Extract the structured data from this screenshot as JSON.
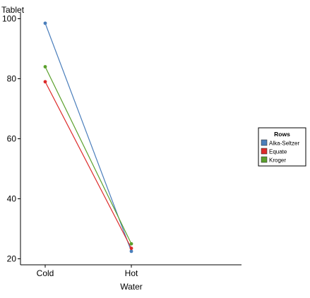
{
  "chart_data": {
    "type": "line",
    "title": "",
    "xlabel": "Water",
    "ylabel": "Tablet",
    "categories": [
      "Cold",
      "Hot"
    ],
    "ylim": [
      18,
      102
    ],
    "yticks": [
      20,
      40,
      60,
      80,
      100
    ],
    "grid": false,
    "legend": {
      "title": "Rows",
      "position": "right"
    },
    "series": [
      {
        "name": "Alka-Seltzer",
        "color": "#4a7ebb",
        "values": [
          98.5,
          22.5
        ]
      },
      {
        "name": "Equate",
        "color": "#dd2a2a",
        "values": [
          79,
          23.5
        ]
      },
      {
        "name": "Kroger",
        "color": "#5aa02c",
        "values": [
          84,
          25
        ]
      }
    ]
  }
}
